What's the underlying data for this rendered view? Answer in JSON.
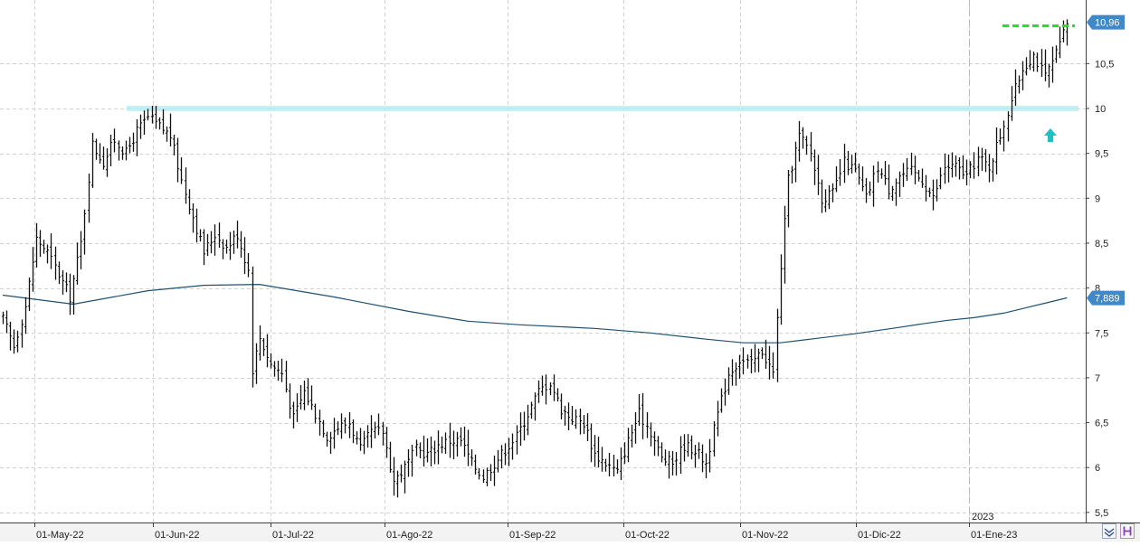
{
  "chart_data": {
    "type": "bar",
    "subtype": "ohlc",
    "title": "",
    "xlabel": "",
    "ylabel": "",
    "ylim": [
      5.35,
      11.05
    ],
    "y_ticks": [
      "5,5",
      "6",
      "6,5",
      "7",
      "7,5",
      "8",
      "8,5",
      "9",
      "9,5",
      "10",
      "10,5"
    ],
    "y_tick_values": [
      5.5,
      6,
      6.5,
      7,
      7.5,
      8,
      8.5,
      9,
      9.5,
      10,
      10.5
    ],
    "x_ticks": [
      "01-May-22",
      "01-Jun-22",
      "01-Jul-22",
      "01-Ago-22",
      "01-Sep-22",
      "01-Oct-22",
      "01-Nov-22",
      "01-Dic-22",
      "01-Ene-23"
    ],
    "year_label": "2023",
    "grid": true,
    "last_price_label": "10,96",
    "last_price": 10.96,
    "ma_label": "7,889",
    "ma_value": 7.889,
    "resistance_level": 10.0,
    "breakout_level": 10.92,
    "moving_average": [
      [
        1,
        7.92
      ],
      [
        20,
        7.82
      ],
      [
        40,
        7.97
      ],
      [
        55,
        8.03
      ],
      [
        70,
        8.04
      ],
      [
        90,
        7.9
      ],
      [
        110,
        7.74
      ],
      [
        126,
        7.63
      ],
      [
        140,
        7.59
      ],
      [
        160,
        7.55
      ],
      [
        175,
        7.5
      ],
      [
        190,
        7.43
      ],
      [
        200,
        7.39
      ],
      [
        210,
        7.39
      ],
      [
        220,
        7.44
      ],
      [
        230,
        7.49
      ],
      [
        240,
        7.55
      ],
      [
        248,
        7.6
      ],
      [
        255,
        7.64
      ],
      [
        262,
        7.67
      ],
      [
        270,
        7.72
      ],
      [
        276,
        7.78
      ],
      [
        282,
        7.84
      ],
      [
        287,
        7.89
      ]
    ],
    "price_path": [
      [
        1,
        7.65
      ],
      [
        4,
        7.35
      ],
      [
        7,
        7.8
      ],
      [
        10,
        8.55
      ],
      [
        13,
        8.4
      ],
      [
        16,
        8.15
      ],
      [
        19,
        7.9
      ],
      [
        22,
        8.5
      ],
      [
        25,
        9.6
      ],
      [
        28,
        9.4
      ],
      [
        31,
        9.65
      ],
      [
        34,
        9.5
      ],
      [
        37,
        9.75
      ],
      [
        40,
        9.9
      ],
      [
        43,
        9.8
      ],
      [
        46,
        9.7
      ],
      [
        49,
        9.2
      ],
      [
        52,
        8.8
      ],
      [
        55,
        8.4
      ],
      [
        58,
        8.6
      ],
      [
        61,
        8.45
      ],
      [
        64,
        8.6
      ],
      [
        67,
        8.2
      ],
      [
        68,
        7.1
      ],
      [
        70,
        7.45
      ],
      [
        73,
        7.15
      ],
      [
        76,
        7.05
      ],
      [
        79,
        6.55
      ],
      [
        82,
        6.85
      ],
      [
        85,
        6.6
      ],
      [
        88,
        6.35
      ],
      [
        91,
        6.45
      ],
      [
        94,
        6.5
      ],
      [
        97,
        6.2
      ],
      [
        100,
        6.4
      ],
      [
        103,
        6.4
      ],
      [
        106,
        5.85
      ],
      [
        109,
        6.0
      ],
      [
        112,
        6.2
      ],
      [
        115,
        6.15
      ],
      [
        118,
        6.25
      ],
      [
        121,
        6.3
      ],
      [
        124,
        6.3
      ],
      [
        127,
        6.05
      ],
      [
        130,
        5.9
      ],
      [
        133,
        6.05
      ],
      [
        136,
        6.2
      ],
      [
        139,
        6.35
      ],
      [
        142,
        6.6
      ],
      [
        145,
        6.85
      ],
      [
        148,
        6.95
      ],
      [
        151,
        6.65
      ],
      [
        154,
        6.55
      ],
      [
        157,
        6.5
      ],
      [
        160,
        6.15
      ],
      [
        163,
        6.05
      ],
      [
        166,
        5.95
      ],
      [
        169,
        6.3
      ],
      [
        172,
        6.6
      ],
      [
        175,
        6.4
      ],
      [
        178,
        6.1
      ],
      [
        181,
        6.05
      ],
      [
        184,
        6.25
      ],
      [
        187,
        6.2
      ],
      [
        190,
        6.05
      ],
      [
        193,
        6.6
      ],
      [
        196,
        7.05
      ],
      [
        199,
        7.2
      ],
      [
        202,
        7.15
      ],
      [
        205,
        7.3
      ],
      [
        208,
        7.05
      ],
      [
        210,
        8.25
      ],
      [
        212,
        9.2
      ],
      [
        215,
        9.7
      ],
      [
        218,
        9.5
      ],
      [
        221,
        9.0
      ],
      [
        224,
        9.05
      ],
      [
        227,
        9.4
      ],
      [
        230,
        9.3
      ],
      [
        233,
        9.0
      ],
      [
        236,
        9.35
      ],
      [
        239,
        9.1
      ],
      [
        242,
        9.25
      ],
      [
        245,
        9.3
      ],
      [
        248,
        9.2
      ],
      [
        251,
        9.0
      ],
      [
        254,
        9.35
      ],
      [
        257,
        9.35
      ],
      [
        260,
        9.25
      ],
      [
        263,
        9.45
      ],
      [
        266,
        9.35
      ],
      [
        269,
        9.7
      ],
      [
        272,
        10.1
      ],
      [
        275,
        10.45
      ],
      [
        278,
        10.6
      ],
      [
        281,
        10.35
      ],
      [
        284,
        10.6
      ],
      [
        287,
        10.95
      ]
    ]
  }
}
